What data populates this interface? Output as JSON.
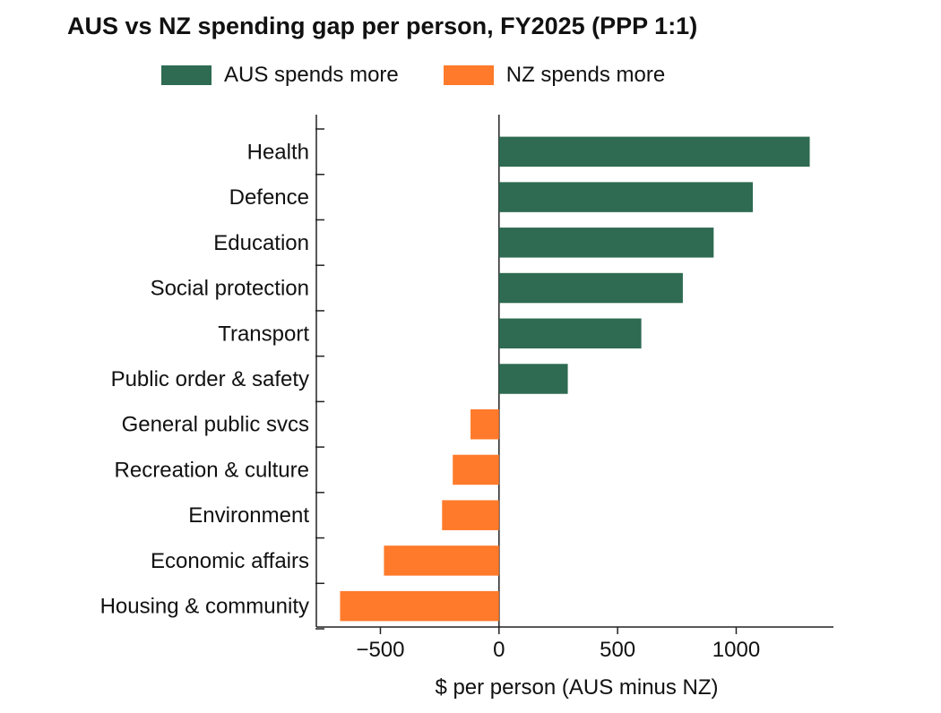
{
  "chart_data": {
    "type": "bar",
    "orientation": "horizontal",
    "title": "AUS vs NZ spending gap per person, FY2025 (PPP 1:1)",
    "xlabel": "$ per person (AUS minus NZ)",
    "ylabel": "",
    "xlim": [
      -770,
      1410
    ],
    "xticks": [
      -500,
      0,
      500,
      1000
    ],
    "xtick_labels": [
      "−500",
      "0",
      "500",
      "1000"
    ],
    "grid": false,
    "legend_position": "top",
    "legend": [
      {
        "label": "AUS spends more",
        "color": "#2e6b52"
      },
      {
        "label": "NZ spends more",
        "color": "#ff7a2a"
      }
    ],
    "categories": [
      "Health",
      "Defence",
      "Education",
      "Social protection",
      "Transport",
      "Public order & safety",
      "General public svcs",
      "Recreation & culture",
      "Environment",
      "Economic affairs",
      "Housing & community"
    ],
    "values": [
      1310,
      1070,
      905,
      775,
      600,
      290,
      -120,
      -195,
      -240,
      -485,
      -670
    ]
  }
}
